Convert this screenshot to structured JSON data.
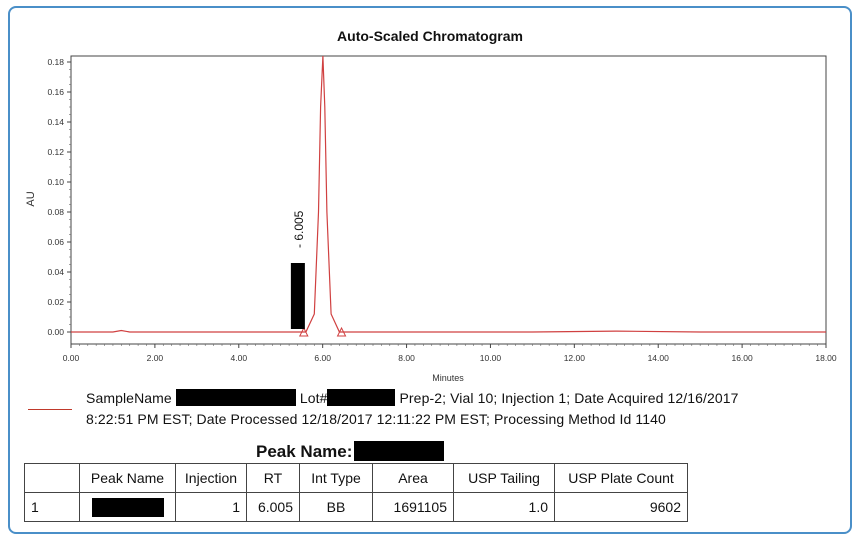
{
  "chart_data": {
    "type": "line",
    "title": "Auto-Scaled Chromatogram",
    "xlabel": "Minutes",
    "ylabel": "AU",
    "xlim": [
      0,
      18
    ],
    "ylim": [
      -0.008,
      0.184
    ],
    "x_ticks": [
      "0.00",
      "2.00",
      "4.00",
      "6.00",
      "8.00",
      "10.00",
      "12.00",
      "14.00",
      "16.00",
      "18.00"
    ],
    "y_ticks": [
      "0.00",
      "0.02",
      "0.04",
      "0.06",
      "0.08",
      "0.10",
      "0.12",
      "0.14",
      "0.16",
      "0.18"
    ],
    "series": [
      {
        "color": "#d04040",
        "x": [
          0.0,
          1.0,
          1.2,
          1.4,
          5.0,
          5.6,
          5.8,
          5.9,
          5.95,
          6.005,
          6.05,
          6.1,
          6.2,
          6.4,
          6.6,
          11.0,
          13.0,
          15.0,
          18.0
        ],
        "y": [
          0.0,
          0.0,
          0.001,
          0.0,
          0.0,
          0.0,
          0.012,
          0.08,
          0.15,
          0.184,
          0.15,
          0.08,
          0.012,
          0.0,
          0.0,
          0.0,
          0.0006,
          0.0,
          0.0
        ]
      }
    ],
    "annotations": [
      {
        "text": "6.005",
        "x": 6.005
      }
    ],
    "grid": false,
    "legend": "none"
  },
  "sample_info": {
    "sample_name_label": "SampleName",
    "lot_label": "Lot#",
    "line1_rest": "Prep-2; Vial 10; Injection 1; Date Acquired 12/16/2017",
    "line2": "8:22:51 PM EST; Date Processed 12/18/2017 12:11:22 PM EST; Processing Method Id 1140"
  },
  "peak_table": {
    "title": "Peak Name:",
    "headers": [
      "Peak Name",
      "Injection",
      "RT",
      "Int Type",
      "Area",
      "USP Tailing",
      "USP Plate Count"
    ],
    "rows": [
      {
        "index": "1",
        "injection": "1",
        "rt": "6.005",
        "int_type": "BB",
        "area": "1691105",
        "usp_tailing": "1.0",
        "usp_plate_count": "9602"
      }
    ]
  }
}
